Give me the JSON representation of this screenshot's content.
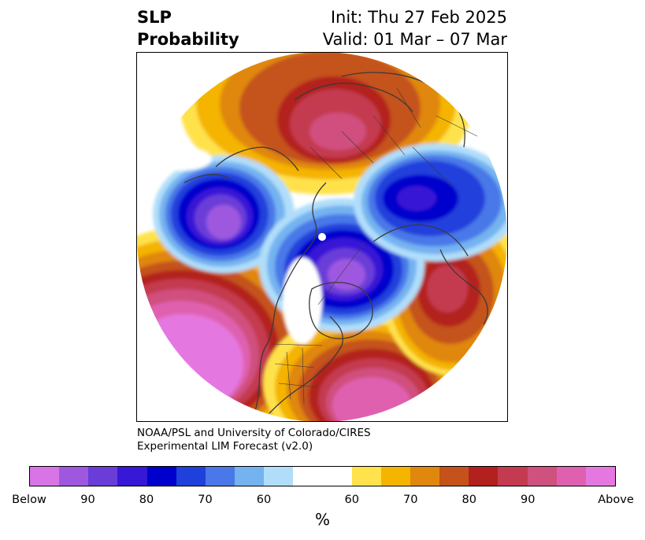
{
  "header": {
    "variable": "SLP",
    "quantity": "Probability",
    "init": "Init: Thu 27 Feb 2025",
    "valid": "Valid: 01 Mar – 07 Mar"
  },
  "credit": {
    "line1": "NOAA/PSL and University of Colorado/CIRES",
    "line2": "Experimental LIM Forecast (v2.0)"
  },
  "colorbar": {
    "unit": "%",
    "below_colors": [
      "#d874e6",
      "#9e58e0",
      "#6a3cd8",
      "#3718d6",
      "#0000cc",
      "#2040dc",
      "#4a78e8",
      "#74b2f0",
      "#b0defa"
    ],
    "neutral_color": "#ffffff",
    "above_colors": [
      "#ffe24c",
      "#f4b400",
      "#e0870e",
      "#c4521a",
      "#b3211f",
      "#c43a50",
      "#d0507e",
      "#e060b0",
      "#e478e0"
    ],
    "tick_labels": [
      "Below",
      "90",
      "80",
      "70",
      "60",
      "60",
      "70",
      "80",
      "90",
      "Above"
    ]
  },
  "map": {
    "projection": "north polar stereographic",
    "features": [
      "coastlines",
      "country borders",
      "state/province borders"
    ],
    "regions": [
      {
        "name": "NE Pacific / Gulf of Alaska",
        "category": "above",
        "level": "Above"
      },
      {
        "name": "Eastern North Atlantic",
        "category": "above",
        "level": "80"
      },
      {
        "name": "Central Siberia",
        "category": "above",
        "level": "80"
      },
      {
        "name": "Southeastern United States",
        "category": "above",
        "level": "Above"
      },
      {
        "name": "Bering Sea",
        "category": "below",
        "level": "90"
      },
      {
        "name": "Greenland",
        "category": "below",
        "level": "90"
      },
      {
        "name": "Scandinavia / Northern Europe",
        "category": "below",
        "level": "80"
      }
    ]
  }
}
